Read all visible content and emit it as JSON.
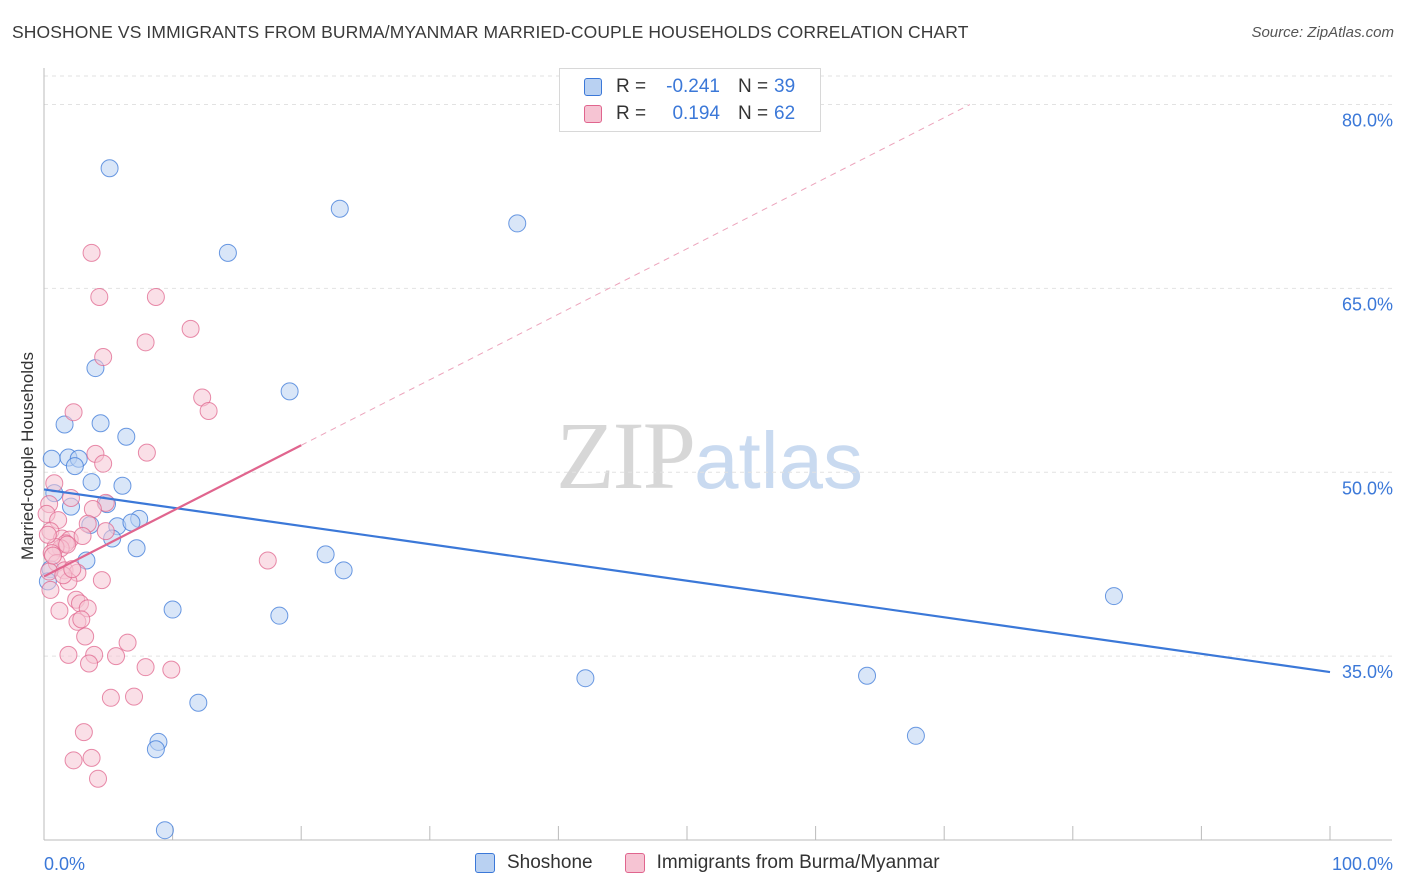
{
  "chart_data": {
    "type": "scatter",
    "title": "SHOSHONE VS IMMIGRANTS FROM BURMA/MYANMAR MARRIED-COUPLE HOUSEHOLDS CORRELATION CHART",
    "source": "Source: ZipAtlas.com",
    "ylabel": "Married-couple Households",
    "xlabel": "",
    "xlim": [
      0,
      100
    ],
    "ylim": [
      20,
      82
    ],
    "x_tick_labels": [
      "0.0%",
      "100.0%"
    ],
    "y_ticks": [
      35,
      50,
      65,
      80
    ],
    "y_tick_labels": [
      "35.0%",
      "50.0%",
      "65.0%",
      "80.0%"
    ],
    "watermark": {
      "zip": "ZIP",
      "atlas": "atlas"
    },
    "legend": {
      "rows": [
        {
          "r_label": "R =",
          "r_value": "-0.241",
          "n_label": "N =",
          "n_value": "39"
        },
        {
          "r_label": "R =",
          "r_value": "0.194",
          "n_label": "N =",
          "n_value": "62"
        }
      ]
    },
    "series": [
      {
        "name": "Shoshone",
        "color": "#3b78d8",
        "fill": "#b9d1f2",
        "trend": {
          "x": [
            0.0,
            100.0
          ],
          "y": [
            48.6,
            33.7
          ],
          "style": "solid"
        },
        "points": [
          [
            5.1,
            74.8
          ],
          [
            23.0,
            71.5
          ],
          [
            36.8,
            70.3
          ],
          [
            14.3,
            67.9
          ],
          [
            4.0,
            58.5
          ],
          [
            19.1,
            56.6
          ],
          [
            1.6,
            53.9
          ],
          [
            4.4,
            54.0
          ],
          [
            6.4,
            52.9
          ],
          [
            0.6,
            51.1
          ],
          [
            1.9,
            51.2
          ],
          [
            2.7,
            51.1
          ],
          [
            2.4,
            50.5
          ],
          [
            3.7,
            49.2
          ],
          [
            6.1,
            48.9
          ],
          [
            0.8,
            48.3
          ],
          [
            2.1,
            47.2
          ],
          [
            4.9,
            47.4
          ],
          [
            7.4,
            46.2
          ],
          [
            3.6,
            45.7
          ],
          [
            5.7,
            45.6
          ],
          [
            6.8,
            45.9
          ],
          [
            5.3,
            44.6
          ],
          [
            7.2,
            43.8
          ],
          [
            0.5,
            42.1
          ],
          [
            3.3,
            42.8
          ],
          [
            21.9,
            43.3
          ],
          [
            23.3,
            42.0
          ],
          [
            83.2,
            39.9
          ],
          [
            10.0,
            38.8
          ],
          [
            18.3,
            38.3
          ],
          [
            42.1,
            33.2
          ],
          [
            64.0,
            33.4
          ],
          [
            12.0,
            31.2
          ],
          [
            67.8,
            28.5
          ],
          [
            8.9,
            28.0
          ],
          [
            8.7,
            27.4
          ],
          [
            9.4,
            20.8
          ],
          [
            0.3,
            41.1
          ]
        ]
      },
      {
        "name": "Immigrants from Burma/Myanmar",
        "color": "#e0658e",
        "fill": "#f6c4d3",
        "trend": {
          "x": [
            0.0,
            20.0
          ],
          "y": [
            41.5,
            52.2
          ],
          "style": "solid",
          "extend_x": [
            20.0,
            72.0
          ],
          "extend_y": [
            52.2,
            80.0
          ]
        },
        "points": [
          [
            3.7,
            67.9
          ],
          [
            4.3,
            64.3
          ],
          [
            8.7,
            64.3
          ],
          [
            11.4,
            61.7
          ],
          [
            7.9,
            60.6
          ],
          [
            4.6,
            59.4
          ],
          [
            12.3,
            56.1
          ],
          [
            12.8,
            55.0
          ],
          [
            2.3,
            54.9
          ],
          [
            4.0,
            51.5
          ],
          [
            8.0,
            51.6
          ],
          [
            4.6,
            50.7
          ],
          [
            0.8,
            49.1
          ],
          [
            0.4,
            47.4
          ],
          [
            2.1,
            47.9
          ],
          [
            4.8,
            47.5
          ],
          [
            3.8,
            47.0
          ],
          [
            0.2,
            46.6
          ],
          [
            1.1,
            46.1
          ],
          [
            3.4,
            45.8
          ],
          [
            0.5,
            45.2
          ],
          [
            1.4,
            44.6
          ],
          [
            2.0,
            44.5
          ],
          [
            1.7,
            44.2
          ],
          [
            1.3,
            43.8
          ],
          [
            0.9,
            43.9
          ],
          [
            0.6,
            43.4
          ],
          [
            4.8,
            45.2
          ],
          [
            1.0,
            42.6
          ],
          [
            1.6,
            42.0
          ],
          [
            0.4,
            41.9
          ],
          [
            2.6,
            41.8
          ],
          [
            1.9,
            41.1
          ],
          [
            4.5,
            41.2
          ],
          [
            0.5,
            40.4
          ],
          [
            17.4,
            42.8
          ],
          [
            2.5,
            39.6
          ],
          [
            2.8,
            39.3
          ],
          [
            3.4,
            38.9
          ],
          [
            1.2,
            38.7
          ],
          [
            2.6,
            37.8
          ],
          [
            2.9,
            38.0
          ],
          [
            3.2,
            36.6
          ],
          [
            6.5,
            36.1
          ],
          [
            1.9,
            35.1
          ],
          [
            3.9,
            35.1
          ],
          [
            5.6,
            35.0
          ],
          [
            3.5,
            34.4
          ],
          [
            7.9,
            34.1
          ],
          [
            9.9,
            33.9
          ],
          [
            5.2,
            31.6
          ],
          [
            7.0,
            31.7
          ],
          [
            3.1,
            28.8
          ],
          [
            2.3,
            26.5
          ],
          [
            3.7,
            26.7
          ],
          [
            4.2,
            25.0
          ],
          [
            0.7,
            43.2
          ],
          [
            1.5,
            41.6
          ],
          [
            0.3,
            44.9
          ],
          [
            2.2,
            42.1
          ],
          [
            3.0,
            44.8
          ],
          [
            1.8,
            44.1
          ]
        ]
      }
    ]
  }
}
